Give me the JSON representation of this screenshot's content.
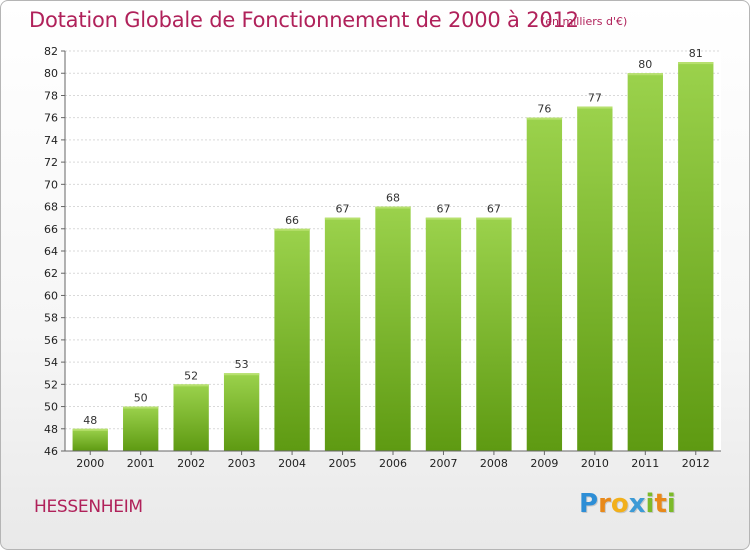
{
  "header": {
    "title": "Dotation Globale de Fonctionnement de 2000 à 2012",
    "subtitle": "(en milliers d'€)"
  },
  "footer": {
    "commune": "HESSENHEIM",
    "logo_letters": [
      {
        "ch": "P",
        "color": "#2d8ed6"
      },
      {
        "ch": "r",
        "color": "#e8891a"
      },
      {
        "ch": "o",
        "color": "#f2b01b"
      },
      {
        "ch": "x",
        "color": "#3d9bd6"
      },
      {
        "ch": "i",
        "color": "#7cba2a"
      },
      {
        "ch": "t",
        "color": "#e8891a"
      },
      {
        "ch": "i",
        "color": "#7cba2a"
      }
    ]
  },
  "chart_data": {
    "type": "bar",
    "categories": [
      "2000",
      "2001",
      "2002",
      "2003",
      "2004",
      "2005",
      "2006",
      "2007",
      "2008",
      "2009",
      "2010",
      "2011",
      "2012"
    ],
    "values": [
      48,
      50,
      52,
      53,
      66,
      67,
      68,
      67,
      67,
      76,
      77,
      80,
      81
    ],
    "ylim": [
      46,
      82
    ],
    "ytick_step": 2,
    "grid": true,
    "bar_color_top": "#9bd24c",
    "bar_color_bottom": "#5e9a12"
  }
}
